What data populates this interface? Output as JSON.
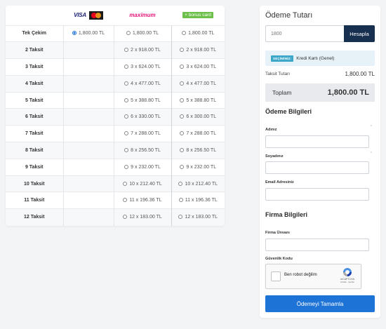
{
  "table": {
    "brands": [
      {
        "name": "visa-mastercard",
        "label": "VISA"
      },
      {
        "name": "maximum",
        "label": "maximum"
      },
      {
        "name": "bonus",
        "label": "+ bonus card"
      }
    ],
    "rows": [
      {
        "label": "Tek Çekim",
        "c1": "1,800.00 TL",
        "c2": "1,800.00 TL",
        "c3": "1,800.00 TL",
        "selected": true
      },
      {
        "label": "2 Taksit",
        "c1": "",
        "c2": "2 x 918.00 TL",
        "c3": "2 x 918.00 TL"
      },
      {
        "label": "3 Taksit",
        "c1": "",
        "c2": "3 x 624.00 TL",
        "c3": "3 x 624.00 TL"
      },
      {
        "label": "4 Taksit",
        "c1": "",
        "c2": "4 x 477.00 TL",
        "c3": "4 x 477.00 TL"
      },
      {
        "label": "5 Taksit",
        "c1": "",
        "c2": "5 x 388.80 TL",
        "c3": "5 x 388.80 TL"
      },
      {
        "label": "6 Taksit",
        "c1": "",
        "c2": "6 x 330.00 TL",
        "c3": "6 x 300.00 TL"
      },
      {
        "label": "7 Taksit",
        "c1": "",
        "c2": "7 x 288.00 TL",
        "c3": "7 x 288.00 TL"
      },
      {
        "label": "8 Taksit",
        "c1": "",
        "c2": "8 x 256.50 TL",
        "c3": "8 x 256.50 TL"
      },
      {
        "label": "9 Taksit",
        "c1": "",
        "c2": "9 x 232.00 TL",
        "c3": "9 x 232.00 TL"
      },
      {
        "label": "10 Taksit",
        "c1": "",
        "c2": "10 x 212.40 TL",
        "c3": "10 x 212.40 TL"
      },
      {
        "label": "11 Taksit",
        "c1": "",
        "c2": "11 x 196.36 TL",
        "c3": "11 x 196.36 TL"
      },
      {
        "label": "12 Taksit",
        "c1": "",
        "c2": "12 x 183.00 TL",
        "c3": "12 x 183.00 TL"
      }
    ]
  },
  "payment": {
    "title": "Ödeme Tutarı",
    "amount_value": "1800",
    "calc_label": "Hesapla",
    "selected_badge": "SEÇİMİNİZ:",
    "selected_text": "Kredi Kartı (Genel)",
    "installment_label": "Taksit Tutarı",
    "installment_value": "1,800.00 TL",
    "total_label": "Toplam",
    "total_value": "1,800.00 TL"
  },
  "billing": {
    "title": "Ödeme Bilgileri",
    "name_label": "Adınız",
    "surname_label": "Soyadınız",
    "email_label": "Email Adresiniz",
    "required_mark": "*"
  },
  "company": {
    "title": "Firma Bilgileri",
    "company_title_label": "Firma Ünvanı",
    "security_label": "Güvenlik Kodu"
  },
  "captcha": {
    "text": "Ben robot değilim",
    "brand": "reCAPTCHA",
    "links": "Gizlilik - Şartlar"
  },
  "submit_label": "Ödemeyi Tamamla",
  "colors": {
    "primary": "#1e73d6",
    "dark_button": "#17304f",
    "selected_bg": "#e6f2f7",
    "selected_badge": "#3da7c9",
    "maximum_pink": "#e5157a",
    "bonus_green": "#6cc04a"
  }
}
